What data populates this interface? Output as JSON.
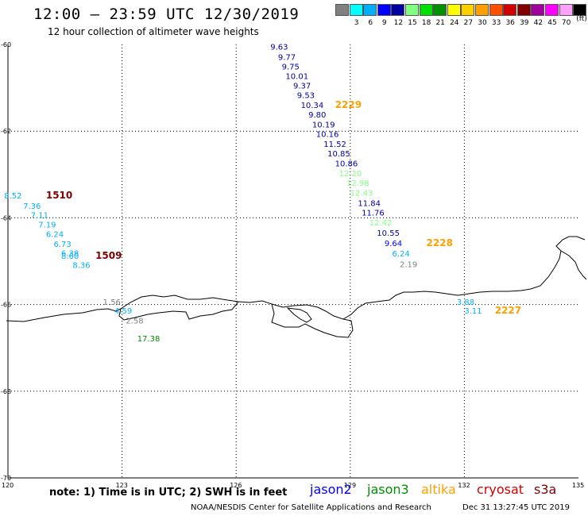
{
  "title": "12:00 – 23:59 UTC 12/30/2019",
  "subtitle": "12 hour collection of altimeter wave heights",
  "color_scale": {
    "unit": "(ft)",
    "swatches": [
      {
        "color": "#808080",
        "label": ""
      },
      {
        "color": "#00ffff",
        "label": "3"
      },
      {
        "color": "#00b0ff",
        "label": "6"
      },
      {
        "color": "#0000ff",
        "label": "9"
      },
      {
        "color": "#0000a0",
        "label": "12"
      },
      {
        "color": "#80ff80",
        "label": "15"
      },
      {
        "color": "#00e000",
        "label": "18"
      },
      {
        "color": "#009000",
        "label": "21"
      },
      {
        "color": "#ffff00",
        "label": "24"
      },
      {
        "color": "#ffd000",
        "label": "27"
      },
      {
        "color": "#ffa000",
        "label": "30"
      },
      {
        "color": "#ff5000",
        "label": "33"
      },
      {
        "color": "#d00000",
        "label": "36"
      },
      {
        "color": "#800000",
        "label": "39"
      },
      {
        "color": "#a000a0",
        "label": "42"
      },
      {
        "color": "#ff00ff",
        "label": "45"
      },
      {
        "color": "#ffa0ff",
        "label": "70"
      },
      {
        "color": "#000000",
        "label": ""
      }
    ]
  },
  "axes": {
    "lat_labels": [
      "-60",
      "-62",
      "-64",
      "-66",
      "-68",
      "-70"
    ],
    "lon_labels": [
      "120",
      "123",
      "126",
      "129",
      "132",
      "135"
    ]
  },
  "observations": [
    {
      "text": "9.63",
      "lon": 126.9,
      "lat": -60.05,
      "color": "#0000a0"
    },
    {
      "text": "9.77",
      "lon": 127.1,
      "lat": -60.28,
      "color": "#0000a0"
    },
    {
      "text": "9.75",
      "lon": 127.2,
      "lat": -60.5,
      "color": "#0000a0"
    },
    {
      "text": "10.01",
      "lon": 127.3,
      "lat": -60.72,
      "color": "#0000a0"
    },
    {
      "text": "9.37",
      "lon": 127.5,
      "lat": -60.94,
      "color": "#0000a0"
    },
    {
      "text": "9.53",
      "lon": 127.6,
      "lat": -61.16,
      "color": "#0000a0"
    },
    {
      "text": "10.34",
      "lon": 127.7,
      "lat": -61.39,
      "color": "#0000a0"
    },
    {
      "text": "9.80",
      "lon": 127.9,
      "lat": -61.61,
      "color": "#0000a0"
    },
    {
      "text": "10.19",
      "lon": 128.0,
      "lat": -61.84,
      "color": "#0000a0"
    },
    {
      "text": "10.16",
      "lon": 128.1,
      "lat": -62.06,
      "color": "#0000a0"
    },
    {
      "text": "11.52",
      "lon": 128.3,
      "lat": -62.29,
      "color": "#0000a0"
    },
    {
      "text": "10.85",
      "lon": 128.4,
      "lat": -62.51,
      "color": "#0000a0"
    },
    {
      "text": "10.86",
      "lon": 128.6,
      "lat": -62.74,
      "color": "#0000a0"
    },
    {
      "text": "12.20",
      "lon": 128.7,
      "lat": -62.97,
      "color": "#80ff80"
    },
    {
      "text": "12.98",
      "lon": 128.9,
      "lat": -63.19,
      "color": "#80ff80"
    },
    {
      "text": "12.43",
      "lon": 129.0,
      "lat": -63.42,
      "color": "#80ff80"
    },
    {
      "text": "11.84",
      "lon": 129.2,
      "lat": -63.65,
      "color": "#0000a0"
    },
    {
      "text": "11.76",
      "lon": 129.3,
      "lat": -63.87,
      "color": "#0000a0"
    },
    {
      "text": "12.42",
      "lon": 129.5,
      "lat": -64.1,
      "color": "#80ff80"
    },
    {
      "text": "10.55",
      "lon": 129.7,
      "lat": -64.34,
      "color": "#0000a0"
    },
    {
      "text": "9.64",
      "lon": 129.9,
      "lat": -64.58,
      "color": "#0000ff"
    },
    {
      "text": "6.24",
      "lon": 130.1,
      "lat": -64.82,
      "color": "#00b0ff"
    },
    {
      "text": "2.19",
      "lon": 130.3,
      "lat": -65.06,
      "color": "#808080"
    },
    {
      "text": "8.52",
      "lon": 119.9,
      "lat": -63.48,
      "color": "#00b0ff"
    },
    {
      "text": "7.36",
      "lon": 120.4,
      "lat": -63.72,
      "color": "#00b0ff"
    },
    {
      "text": "7.11",
      "lon": 120.6,
      "lat": -63.93,
      "color": "#00b0ff"
    },
    {
      "text": "7.19",
      "lon": 120.8,
      "lat": -64.15,
      "color": "#00b0ff"
    },
    {
      "text": "6.24",
      "lon": 121.0,
      "lat": -64.37,
      "color": "#00b0ff"
    },
    {
      "text": "6.73",
      "lon": 121.2,
      "lat": -64.6,
      "color": "#00b0ff"
    },
    {
      "text": "6.38",
      "lon": 121.4,
      "lat": -64.81,
      "color": "#00b0ff"
    },
    {
      "text": "8.60",
      "lon": 121.4,
      "lat": -64.87,
      "color": "#00b0ff"
    },
    {
      "text": "8.36",
      "lon": 121.7,
      "lat": -65.08,
      "color": "#00b0ff"
    },
    {
      "text": "1.56",
      "lon": 122.5,
      "lat": -65.93,
      "color": "#808080"
    },
    {
      "text": "4.59",
      "lon": 122.8,
      "lat": -66.14,
      "color": "#00b0ff"
    },
    {
      "text": "2.58",
      "lon": 123.1,
      "lat": -66.36,
      "color": "#808080"
    },
    {
      "text": "17.38",
      "lon": 123.4,
      "lat": -66.78,
      "color": "#009000"
    },
    {
      "text": "3.88",
      "lon": 131.8,
      "lat": -65.93,
      "color": "#00b0ff"
    },
    {
      "text": "3.11",
      "lon": 132.0,
      "lat": -66.14,
      "color": "#00b0ff"
    }
  ],
  "track_labels": [
    {
      "text": "2229",
      "lon": 128.6,
      "lat": -61.39,
      "color": "#ffa000"
    },
    {
      "text": "2228",
      "lon": 131.0,
      "lat": -64.58,
      "color": "#ffa000"
    },
    {
      "text": "2227",
      "lon": 132.8,
      "lat": -66.14,
      "color": "#ffa000"
    },
    {
      "text": "1510",
      "lon": 121.0,
      "lat": -63.48,
      "color": "#800000"
    },
    {
      "text": "1509",
      "lon": 122.3,
      "lat": -64.87,
      "color": "#800000"
    }
  ],
  "note": "note: 1) Time is in UTC; 2) SWH is in feet",
  "satellites": [
    {
      "name": "jason2",
      "color": "#0000ff"
    },
    {
      "name": "jason3",
      "color": "#009000"
    },
    {
      "name": "altika",
      "color": "#ffa000"
    },
    {
      "name": "cryosat",
      "color": "#d00000"
    },
    {
      "name": "s3a",
      "color": "#800000"
    }
  ],
  "credit": "NOAA/NESDIS Center for Satellite Applications and Research",
  "timestamp": "Dec 31 13:27:45 UTC 2019"
}
